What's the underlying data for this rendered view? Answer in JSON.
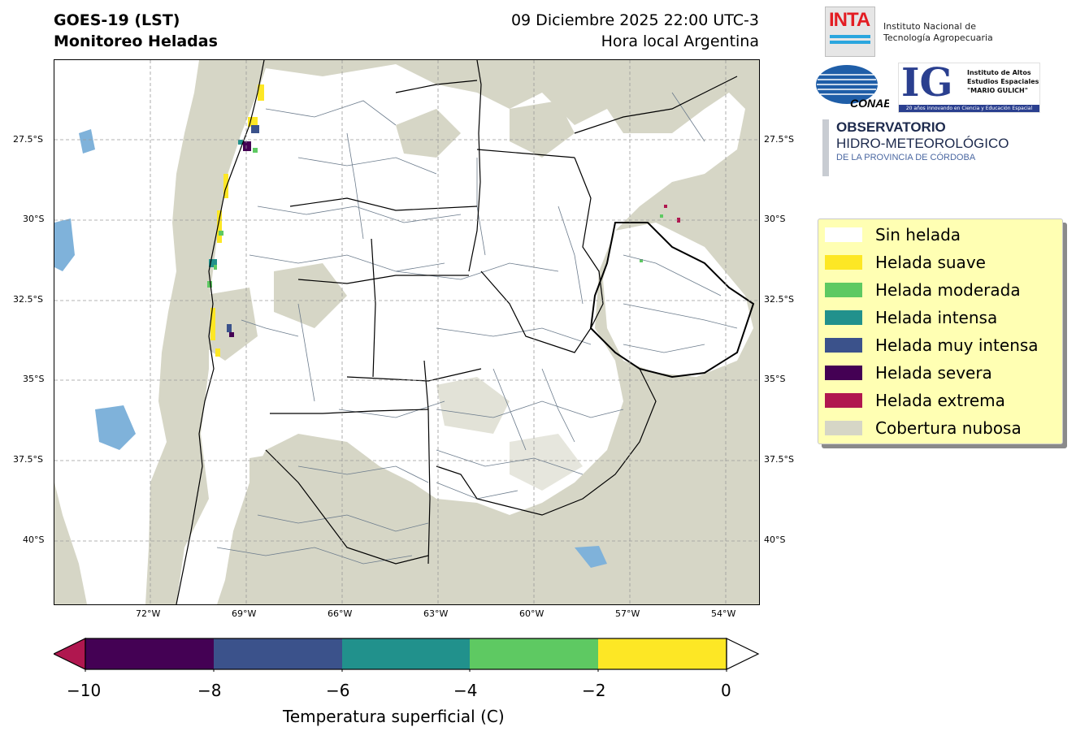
{
  "header": {
    "title_line1": "GOES-19 (LST)",
    "title_line2": "Monitoreo Heladas",
    "datetime": "09 Diciembre 2025 22:00 UTC-3",
    "timezone_note": "Hora local Argentina"
  },
  "map": {
    "lat_labels": [
      "27.5°S",
      "30°S",
      "32.5°S",
      "35°S",
      "37.5°S",
      "40°S"
    ],
    "lon_labels": [
      "72°W",
      "69°W",
      "66°W",
      "63°W",
      "60°W",
      "57°W",
      "54°W"
    ],
    "colors": {
      "cloud": "#d6d6c6",
      "no_frost": "#ffffff",
      "water": "#7fb2da"
    }
  },
  "legend": {
    "items": [
      {
        "label": "Sin helada",
        "color": "#ffffff"
      },
      {
        "label": "Helada suave",
        "color": "#fde725"
      },
      {
        "label": "Helada moderada",
        "color": "#5ec962"
      },
      {
        "label": "Helada intensa",
        "color": "#21918c"
      },
      {
        "label": "Helada muy intensa",
        "color": "#3b528b"
      },
      {
        "label": "Helada severa",
        "color": "#440154"
      },
      {
        "label": "Helada extrema",
        "color": "#b0174f"
      },
      {
        "label": "Cobertura nubosa",
        "color": "#d6d6c6"
      }
    ]
  },
  "logos": {
    "inta_word": "INTA",
    "inta_name_line1": "Instituto Nacional de",
    "inta_name_line2": "Tecnología Agropecuaria",
    "conae_word": "CONAE",
    "ig_word": "IG",
    "ig_line1": "Instituto de Altos",
    "ig_line2": "Estudios Espaciales",
    "ig_line3": "\"MARIO GULICH\"",
    "ig_bar": "20 años innovando en Ciencia y Educación Espacial",
    "obs_line1": "OBSERVATORIO",
    "obs_line2": "HIDRO-METEOROLÓGICO",
    "obs_line3": "DE LA PROVINCIA DE CÓRDOBA"
  },
  "colorbar": {
    "ticks": [
      "−10",
      "−8",
      "−6",
      "−4",
      "−2",
      "0"
    ],
    "label": "Temperatura superficial (C)",
    "segment_colors": [
      "#440154",
      "#3b528b",
      "#21918c",
      "#5ec962",
      "#fde725"
    ],
    "under_color": "#b0174f",
    "over_color": "#ffffff"
  }
}
